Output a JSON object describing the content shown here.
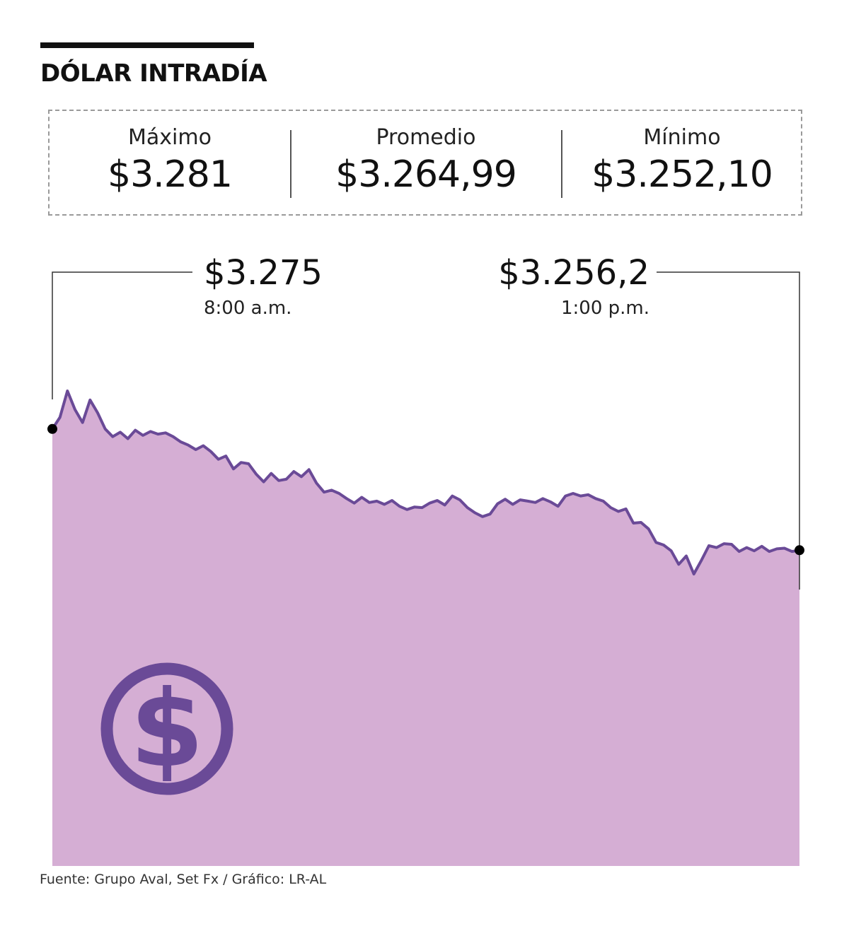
{
  "header": {
    "title": "DÓLAR INTRADÍA"
  },
  "stats": [
    {
      "label": "Máximo",
      "value": "$3.281"
    },
    {
      "label": "Promedio",
      "value": "$3.264,99"
    },
    {
      "label": "Mínimo",
      "value": "$3.252,10"
    }
  ],
  "chart_data": {
    "type": "area",
    "x_unit": "hora",
    "x_range": [
      "8:00 a.m.",
      "1:00 p.m."
    ],
    "ylim": [
      3240,
      3290
    ],
    "colors": {
      "fill": "#d5aed4",
      "line": "#6a4a97",
      "marker": "#000000",
      "icon": "#6a4a97"
    },
    "start": {
      "time": "8:00 a.m.",
      "value": 3275,
      "label": "$3.275"
    },
    "end": {
      "time": "1:00 p.m.",
      "value": 3256.2,
      "label": "$3.256,2"
    },
    "series": [
      {
        "values": [
          3275.0,
          3276.8,
          3280.9,
          3278.0,
          3276.0,
          3279.5,
          3277.5,
          3275.0,
          3273.8,
          3274.5,
          3273.5,
          3274.8,
          3274.0,
          3274.6,
          3274.2,
          3274.4,
          3273.8,
          3273.0,
          3272.5,
          3271.8,
          3272.4,
          3271.5,
          3270.3,
          3270.8,
          3268.8,
          3269.8,
          3269.6,
          3268.0,
          3266.8,
          3268.1,
          3267.0,
          3267.2,
          3268.4,
          3267.6,
          3268.7,
          3266.6,
          3265.2,
          3265.5,
          3265.0,
          3264.2,
          3263.5,
          3264.4,
          3263.6,
          3263.8,
          3263.3,
          3263.9,
          3263.0,
          3262.5,
          3262.9,
          3262.8,
          3263.5,
          3263.9,
          3263.2,
          3264.6,
          3264.0,
          3262.8,
          3262.0,
          3261.4,
          3261.8,
          3263.4,
          3264.1,
          3263.3,
          3264.0,
          3263.8,
          3263.6,
          3264.2,
          3263.7,
          3263.0,
          3264.6,
          3265.0,
          3264.6,
          3264.8,
          3264.2,
          3263.8,
          3262.8,
          3262.2,
          3262.6,
          3260.4,
          3260.5,
          3259.5,
          3257.4,
          3257.0,
          3256.1,
          3254.0,
          3255.3,
          3252.5,
          3254.6,
          3256.9,
          3256.6,
          3257.2,
          3257.1,
          3256.0,
          3256.6,
          3256.1,
          3256.8,
          3256.0,
          3256.4,
          3256.5,
          3256.0,
          3256.2
        ]
      }
    ]
  },
  "footer": {
    "source": "Fuente: Grupo Aval, Set Fx / Gráfico: LR-AL"
  }
}
